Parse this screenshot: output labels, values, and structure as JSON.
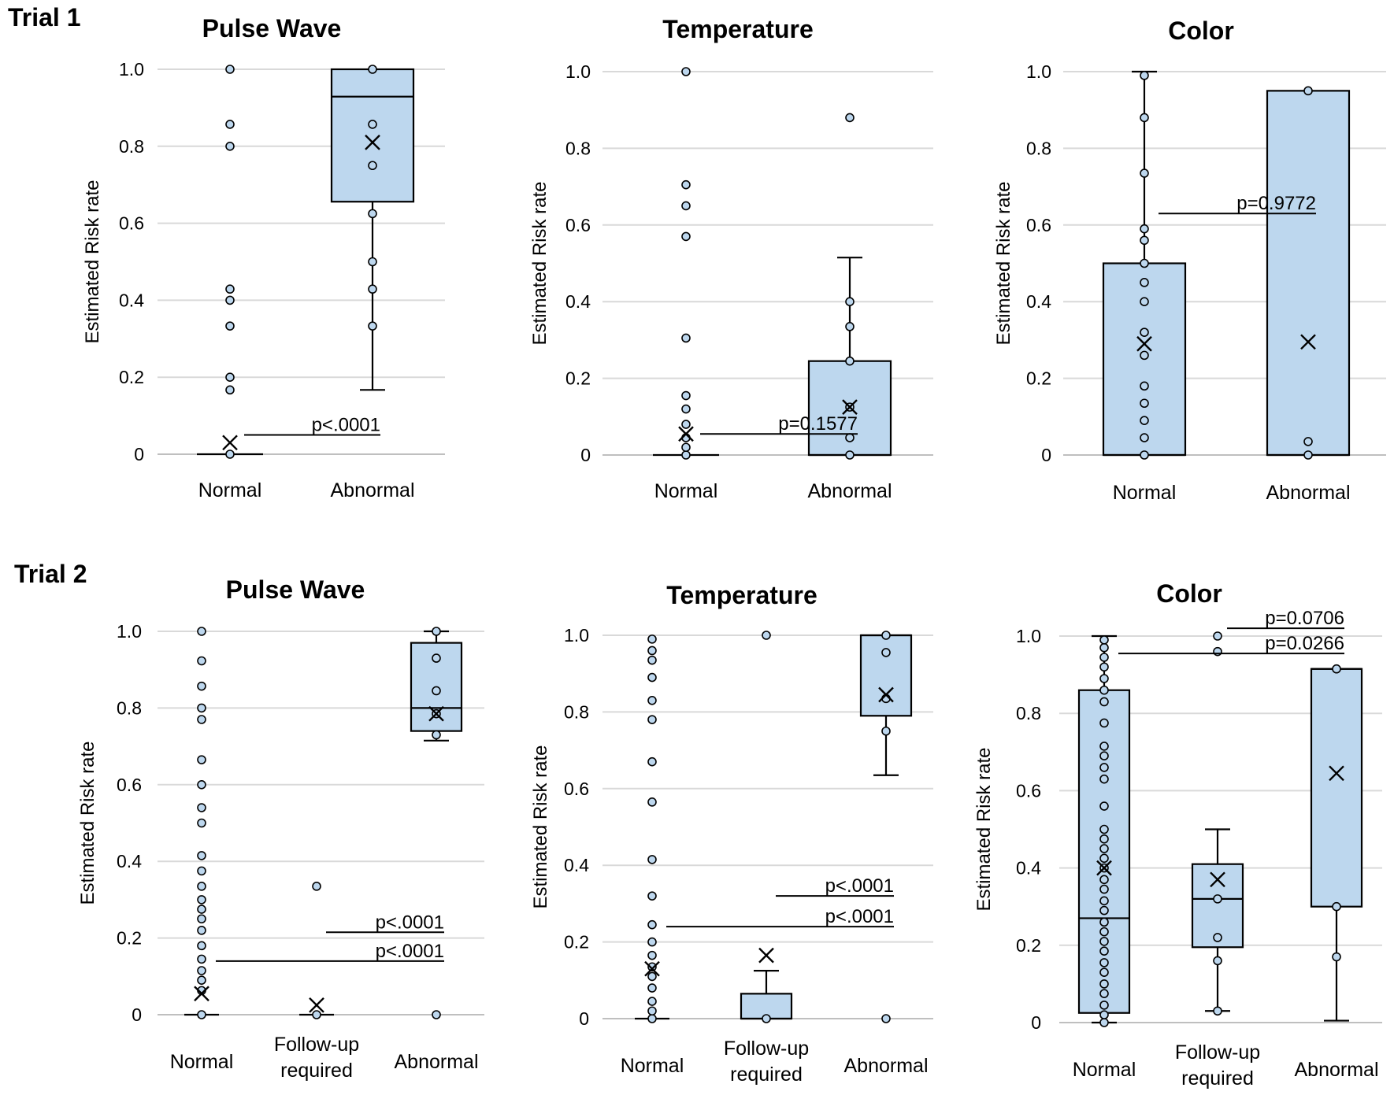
{
  "figure": {
    "trials": [
      {
        "label": "Trial 1"
      },
      {
        "label": "Trial 2"
      }
    ]
  },
  "chart_data": [
    {
      "type": "box",
      "trial": "Trial 1",
      "title": "Pulse Wave",
      "xlabel": "",
      "ylabel": "Estimated Risk rate",
      "ylim": [
        0,
        1
      ],
      "yticks": [
        "0",
        "0.2",
        "0.4",
        "0.6",
        "0.8",
        "1.0"
      ],
      "categories": [
        "Normal",
        "Abnormal"
      ],
      "groups": [
        {
          "name": "Normal",
          "box": null,
          "mean": 0.03,
          "points": [
            0,
            0.167,
            0.2,
            0.333,
            0.4,
            0.429,
            0.8,
            0.857,
            1.0
          ]
        },
        {
          "name": "Abnormal",
          "box": {
            "whisker_low": 0.167,
            "q1": 0.656,
            "median": 0.929,
            "q3": 1.0,
            "whisker_high": 1.0
          },
          "mean": 0.81,
          "points": [
            0.333,
            0.429,
            0.5,
            0.625,
            0.75,
            0.857,
            1.0
          ]
        }
      ],
      "pvalues": [
        {
          "label": "p<.0001",
          "from": 0,
          "to": 1,
          "y": 0.05
        }
      ]
    },
    {
      "type": "box",
      "trial": "Trial 1",
      "title": "Temperature",
      "xlabel": "",
      "ylabel": "Estimated Risk rate",
      "ylim": [
        0,
        1
      ],
      "yticks": [
        "0",
        "0.2",
        "0.4",
        "0.6",
        "0.8",
        "1.0"
      ],
      "categories": [
        "Normal",
        "Abnormal"
      ],
      "groups": [
        {
          "name": "Normal",
          "box": null,
          "mean": 0.055,
          "points": [
            0,
            0.02,
            0.045,
            0.08,
            0.12,
            0.155,
            0.305,
            0.57,
            0.65,
            0.705,
            1.0
          ]
        },
        {
          "name": "Abnormal",
          "box": {
            "whisker_low": 0,
            "q1": 0,
            "median": 0,
            "q3": 0.245,
            "whisker_high": 0.515
          },
          "mean": 0.125,
          "points": [
            0,
            0.045,
            0.125,
            0.245,
            0.335,
            0.4,
            0.88
          ]
        }
      ],
      "pvalues": [
        {
          "label": "p=0.1577",
          "from": 0,
          "to": 1,
          "y": 0.055
        }
      ]
    },
    {
      "type": "box",
      "trial": "Trial 1",
      "title": "Color",
      "xlabel": "",
      "ylabel": "Estimated Risk rate",
      "ylim": [
        0,
        1
      ],
      "yticks": [
        "0",
        "0.2",
        "0.4",
        "0.6",
        "0.8",
        "1.0"
      ],
      "categories": [
        "Normal",
        "Abnormal"
      ],
      "groups": [
        {
          "name": "Normal",
          "box": {
            "whisker_low": 0,
            "q1": 0,
            "median": 0,
            "q3": 0.5,
            "whisker_high": 1.0
          },
          "mean": 0.29,
          "points": [
            0,
            0.045,
            0.09,
            0.135,
            0.18,
            0.26,
            0.32,
            0.4,
            0.45,
            0.5,
            0.56,
            0.59,
            0.735,
            0.88,
            0.99
          ]
        },
        {
          "name": "Abnormal",
          "box": {
            "whisker_low": 0,
            "q1": 0,
            "median": 0,
            "q3": 0.95,
            "whisker_high": 0.95
          },
          "mean": 0.295,
          "points": [
            0,
            0.035,
            0.95
          ]
        }
      ],
      "pvalues": [
        {
          "label": "p=0.9772",
          "from": 0,
          "to": 1,
          "y": 0.63
        }
      ]
    },
    {
      "type": "box",
      "trial": "Trial 2",
      "title": "Pulse Wave",
      "xlabel": "",
      "ylabel": "Estimated Risk rate",
      "ylim": [
        0,
        1
      ],
      "yticks": [
        "0",
        "0.2",
        "0.4",
        "0.6",
        "0.8",
        "1.0"
      ],
      "categories": [
        "Normal",
        "Follow-up required",
        "Abnormal"
      ],
      "groups": [
        {
          "name": "Normal",
          "box": null,
          "mean": 0.055,
          "points": [
            0,
            0.063,
            0.09,
            0.115,
            0.145,
            0.18,
            0.22,
            0.25,
            0.275,
            0.3,
            0.335,
            0.375,
            0.415,
            0.5,
            0.54,
            0.6,
            0.665,
            0.77,
            0.8,
            0.857,
            0.923,
            1.0
          ]
        },
        {
          "name": "Follow-up required",
          "box": null,
          "mean": 0.025,
          "points": [
            0,
            0.335
          ]
        },
        {
          "name": "Abnormal",
          "box": {
            "whisker_low": 0.715,
            "q1": 0.74,
            "median": 0.8,
            "q3": 0.97,
            "whisker_high": 1.0
          },
          "mean": 0.785,
          "points": [
            0,
            0.73,
            0.785,
            0.845,
            0.93,
            1.0
          ]
        }
      ],
      "pvalues": [
        {
          "label": "p<.0001",
          "from": 1,
          "to": 2,
          "y": 0.215
        },
        {
          "label": "p<.0001",
          "from": 0,
          "to": 2,
          "y": 0.14
        }
      ]
    },
    {
      "type": "box",
      "trial": "Trial 2",
      "title": "Temperature",
      "xlabel": "",
      "ylabel": "Estimated Risk rate",
      "ylim": [
        0,
        1
      ],
      "yticks": [
        "0",
        "0.2",
        "0.4",
        "0.6",
        "0.8",
        "1.0"
      ],
      "categories": [
        "Normal",
        "Follow-up required",
        "Abnormal"
      ],
      "groups": [
        {
          "name": "Normal",
          "box": null,
          "mean": 0.13,
          "points": [
            0,
            0.02,
            0.045,
            0.08,
            0.11,
            0.135,
            0.165,
            0.2,
            0.245,
            0.32,
            0.415,
            0.565,
            0.67,
            0.78,
            0.83,
            0.89,
            0.935,
            0.96,
            0.99
          ]
        },
        {
          "name": "Follow-up required",
          "box": {
            "whisker_low": 0,
            "q1": 0,
            "median": 0,
            "q3": 0.065,
            "whisker_high": 0.125
          },
          "mean": 0.165,
          "points": [
            0,
            1.0
          ]
        },
        {
          "name": "Abnormal",
          "box": {
            "whisker_low": 0.635,
            "q1": 0.79,
            "median": 1.0,
            "q3": 1.0,
            "whisker_high": 1.0
          },
          "mean": 0.845,
          "points": [
            0,
            0.75,
            0.835,
            0.955,
            1.0
          ]
        }
      ],
      "pvalues": [
        {
          "label": "p<.0001",
          "from": 1,
          "to": 2,
          "y": 0.32
        },
        {
          "label": "p<.0001",
          "from": 0,
          "to": 2,
          "y": 0.24
        }
      ]
    },
    {
      "type": "box",
      "trial": "Trial 2",
      "title": "Color",
      "xlabel": "",
      "ylabel": "Estimated Risk rate",
      "ylim": [
        0,
        1
      ],
      "yticks": [
        "0",
        "0.2",
        "0.4",
        "0.6",
        "0.8",
        "1.0"
      ],
      "categories": [
        "Normal",
        "Follow-up required",
        "Abnormal"
      ],
      "groups": [
        {
          "name": "Normal",
          "box": {
            "whisker_low": 0,
            "q1": 0.025,
            "median": 0.27,
            "q3": 0.86,
            "whisker_high": 1.0
          },
          "mean": 0.4,
          "points": [
            0,
            0.02,
            0.045,
            0.075,
            0.1,
            0.13,
            0.155,
            0.185,
            0.21,
            0.235,
            0.26,
            0.29,
            0.315,
            0.345,
            0.37,
            0.4,
            0.425,
            0.45,
            0.475,
            0.5,
            0.56,
            0.63,
            0.66,
            0.69,
            0.715,
            0.775,
            0.83,
            0.86,
            0.89,
            0.92,
            0.945,
            0.97,
            0.99
          ]
        },
        {
          "name": "Follow-up required",
          "box": {
            "whisker_low": 0.03,
            "q1": 0.195,
            "median": 0.32,
            "q3": 0.41,
            "whisker_high": 0.5
          },
          "mean": 0.37,
          "points": [
            0.03,
            0.16,
            0.22,
            0.32,
            0.96,
            1.0
          ]
        },
        {
          "name": "Abnormal",
          "box": {
            "whisker_low": 0.005,
            "q1": 0.3,
            "median": 0.915,
            "q3": 0.915,
            "whisker_high": 0.915
          },
          "mean": 0.645,
          "points": [
            0.17,
            0.3,
            0.915
          ]
        }
      ],
      "pvalues": [
        {
          "label": "p=0.0706",
          "from": 1,
          "to": 2,
          "y": 1.02
        },
        {
          "label": "p=0.0266",
          "from": 0,
          "to": 2,
          "y": 0.955
        }
      ]
    }
  ]
}
